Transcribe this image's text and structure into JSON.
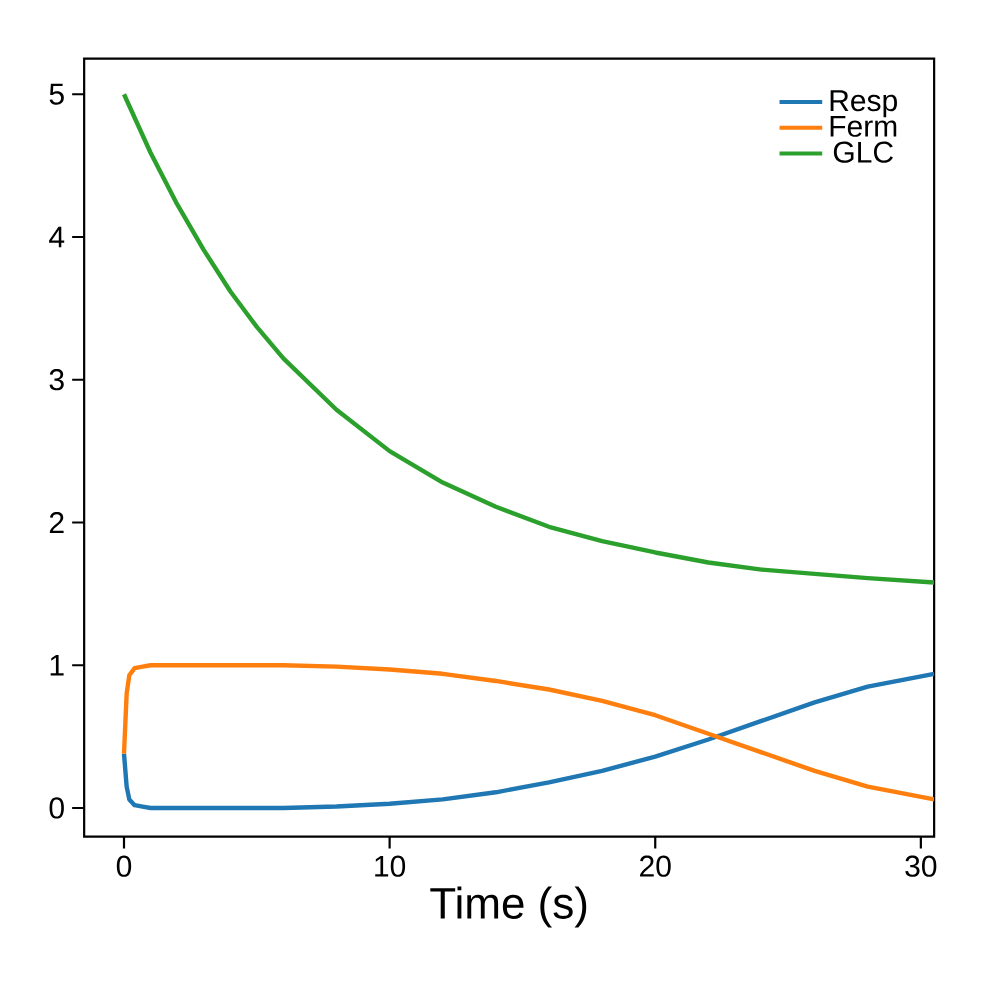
{
  "chart_data": {
    "type": "line",
    "xlabel": "Time (s)",
    "xlim": [
      -1.5,
      30.5
    ],
    "ylim": [
      -0.2,
      5.25
    ],
    "xticks": [
      0,
      10,
      20,
      30
    ],
    "yticks": [
      0,
      1,
      2,
      3,
      4,
      5
    ],
    "legend": "top right",
    "grid": false,
    "series": [
      {
        "name": "Resp",
        "color": "#1f77b4",
        "x": [
          0,
          0.1,
          0.2,
          0.4,
          0.7,
          1,
          2,
          4,
          6,
          8,
          10,
          12,
          14,
          16,
          18,
          20,
          22,
          24,
          26,
          28,
          30.5
        ],
        "values": [
          0.38,
          0.15,
          0.06,
          0.02,
          0.01,
          0.0,
          0.0,
          0.0,
          0.0,
          0.01,
          0.03,
          0.06,
          0.11,
          0.18,
          0.26,
          0.36,
          0.48,
          0.61,
          0.74,
          0.85,
          0.94
        ]
      },
      {
        "name": "Ferm",
        "color": "#ff7f0e",
        "x": [
          0,
          0.1,
          0.2,
          0.4,
          0.7,
          1,
          2,
          4,
          6,
          8,
          10,
          12,
          14,
          16,
          18,
          20,
          22,
          24,
          26,
          28,
          30.5
        ],
        "values": [
          0.38,
          0.8,
          0.93,
          0.98,
          0.99,
          1.0,
          1.0,
          1.0,
          1.0,
          0.99,
          0.97,
          0.94,
          0.89,
          0.83,
          0.75,
          0.65,
          0.52,
          0.39,
          0.26,
          0.15,
          0.06
        ]
      },
      {
        "name": "GLC",
        "color": "#2ca02c",
        "x": [
          0,
          1,
          2,
          3,
          4,
          5,
          6,
          8,
          10,
          12,
          14,
          16,
          18,
          20,
          22,
          24,
          26,
          28,
          30.5
        ],
        "values": [
          5,
          4.59,
          4.23,
          3.91,
          3.62,
          3.37,
          3.15,
          2.79,
          2.5,
          2.28,
          2.11,
          1.97,
          1.87,
          1.79,
          1.72,
          1.67,
          1.64,
          1.61,
          1.58
        ]
      }
    ]
  }
}
